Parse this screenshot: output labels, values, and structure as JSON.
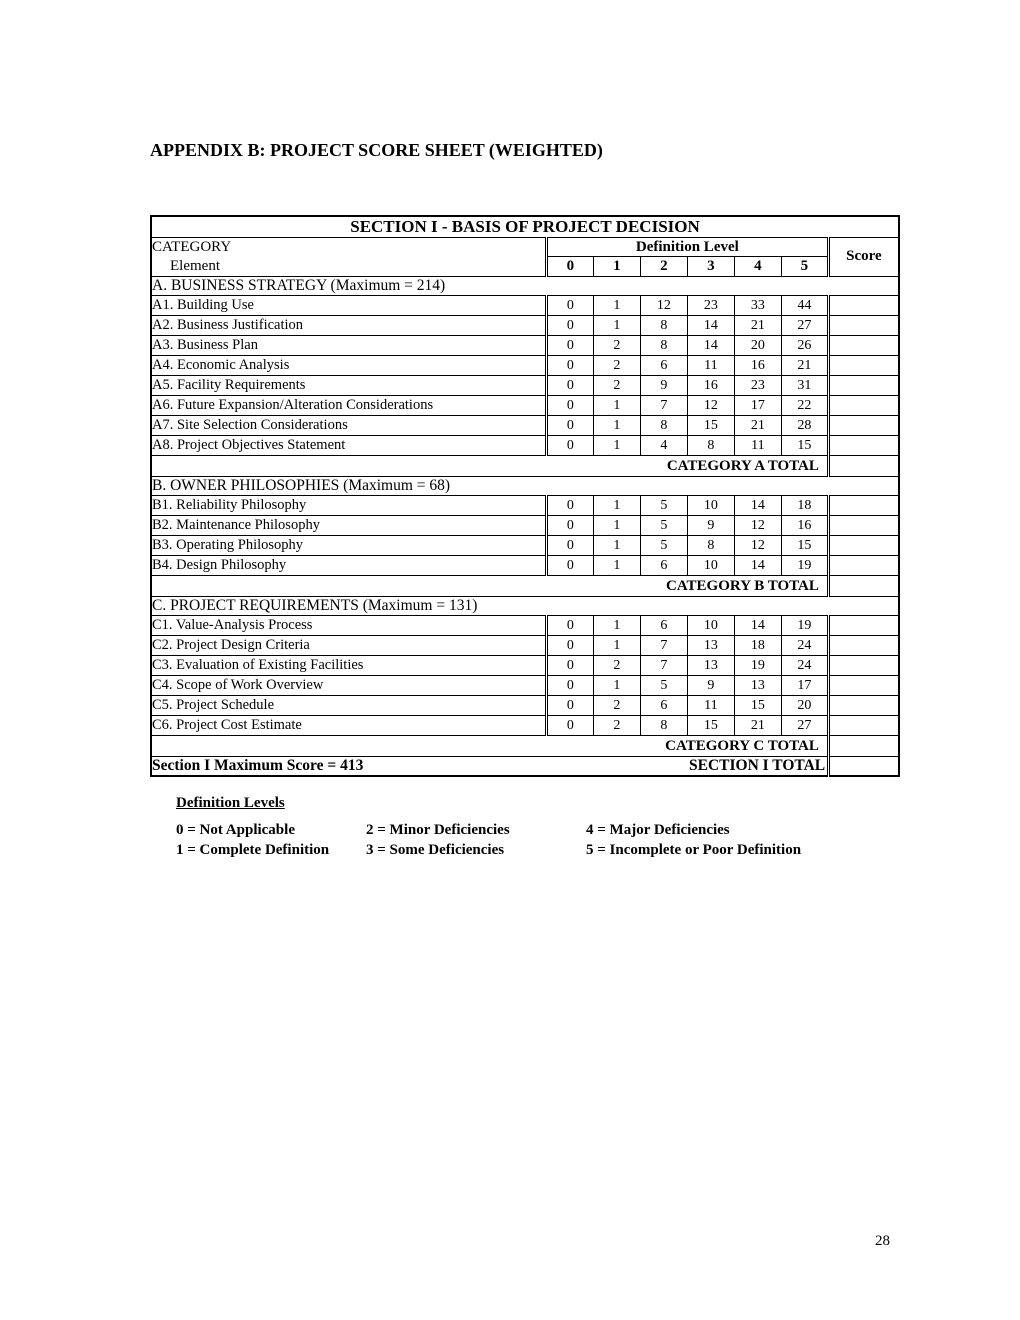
{
  "page_number": "28",
  "appendix_title": "APPENDIX B:  PROJECT SCORE SHEET (WEIGHTED)",
  "section_title": "SECTION  I  -  BASIS OF PROJECT DECISION",
  "headers": {
    "category": "CATEGORY",
    "element": "Element",
    "def_level": "Definition Level",
    "levels": [
      "0",
      "1",
      "2",
      "3",
      "4",
      "5"
    ],
    "score": "Score"
  },
  "groups": [
    {
      "label": "A.  BUSINESS STRATEGY   (Maximum = 214)",
      "total_label": "CATEGORY A TOTAL",
      "rows": [
        {
          "label": "A1.  Building Use",
          "v": [
            "0",
            "1",
            "12",
            "23",
            "33",
            "44"
          ]
        },
        {
          "label": "A2.  Business Justification",
          "v": [
            "0",
            "1",
            "8",
            "14",
            "21",
            "27"
          ]
        },
        {
          "label": "A3.  Business Plan",
          "v": [
            "0",
            "2",
            "8",
            "14",
            "20",
            "26"
          ]
        },
        {
          "label": "A4.  Economic Analysis",
          "v": [
            "0",
            "2",
            "6",
            "11",
            "16",
            "21"
          ]
        },
        {
          "label": "A5.  Facility Requirements",
          "v": [
            "0",
            "2",
            "9",
            "16",
            "23",
            "31"
          ]
        },
        {
          "label": "A6.  Future Expansion/Alteration Considerations",
          "v": [
            "0",
            "1",
            "7",
            "12",
            "17",
            "22"
          ]
        },
        {
          "label": "A7.  Site Selection Considerations",
          "v": [
            "0",
            "1",
            "8",
            "15",
            "21",
            "28"
          ]
        },
        {
          "label": "A8.  Project Objectives Statement",
          "v": [
            "0",
            "1",
            "4",
            "8",
            "11",
            "15"
          ]
        }
      ]
    },
    {
      "label": "B.  OWNER PHILOSOPHIES   (Maximum = 68)",
      "total_label": "CATEGORY B TOTAL",
      "rows": [
        {
          "label": "B1.  Reliability Philosophy",
          "v": [
            "0",
            "1",
            "5",
            "10",
            "14",
            "18"
          ]
        },
        {
          "label": "B2.  Maintenance Philosophy",
          "v": [
            "0",
            "1",
            "5",
            "9",
            "12",
            "16"
          ]
        },
        {
          "label": "B3.  Operating Philosophy",
          "v": [
            "0",
            "1",
            "5",
            "8",
            "12",
            "15"
          ]
        },
        {
          "label": "B4.  Design Philosophy",
          "v": [
            "0",
            "1",
            "6",
            "10",
            "14",
            "19"
          ]
        }
      ]
    },
    {
      "label": "C.  PROJECT REQUIREMENTS   (Maximum = 131)",
      "total_label": "CATEGORY C TOTAL",
      "rows": [
        {
          "label": "C1.  Value-Analysis Process",
          "v": [
            "0",
            "1",
            "6",
            "10",
            "14",
            "19"
          ]
        },
        {
          "label": "C2.  Project Design Criteria",
          "v": [
            "0",
            "1",
            "7",
            "13",
            "18",
            "24"
          ]
        },
        {
          "label": "C3.  Evaluation of Existing Facilities",
          "v": [
            "0",
            "2",
            "7",
            "13",
            "19",
            "24"
          ]
        },
        {
          "label": "C4.  Scope of Work Overview",
          "v": [
            "0",
            "1",
            "5",
            "9",
            "13",
            "17"
          ]
        },
        {
          "label": "C5.  Project Schedule",
          "v": [
            "0",
            "2",
            "6",
            "11",
            "15",
            "20"
          ]
        },
        {
          "label": "C6.  Project Cost Estimate",
          "v": [
            "0",
            "2",
            "8",
            "15",
            "21",
            "27"
          ]
        }
      ]
    }
  ],
  "section_total": {
    "max_label": "Section I Maximum Score = 413",
    "total_label": "SECTION I TOTAL"
  },
  "legend": {
    "title": "Definition Levels",
    "items": [
      [
        "0 = Not Applicable",
        "2 = Minor Deficiencies",
        "4 = Major Deficiencies"
      ],
      [
        "1 = Complete Definition",
        "3 = Some Deficiencies",
        "5 = Incomplete or Poor Definition"
      ]
    ]
  }
}
